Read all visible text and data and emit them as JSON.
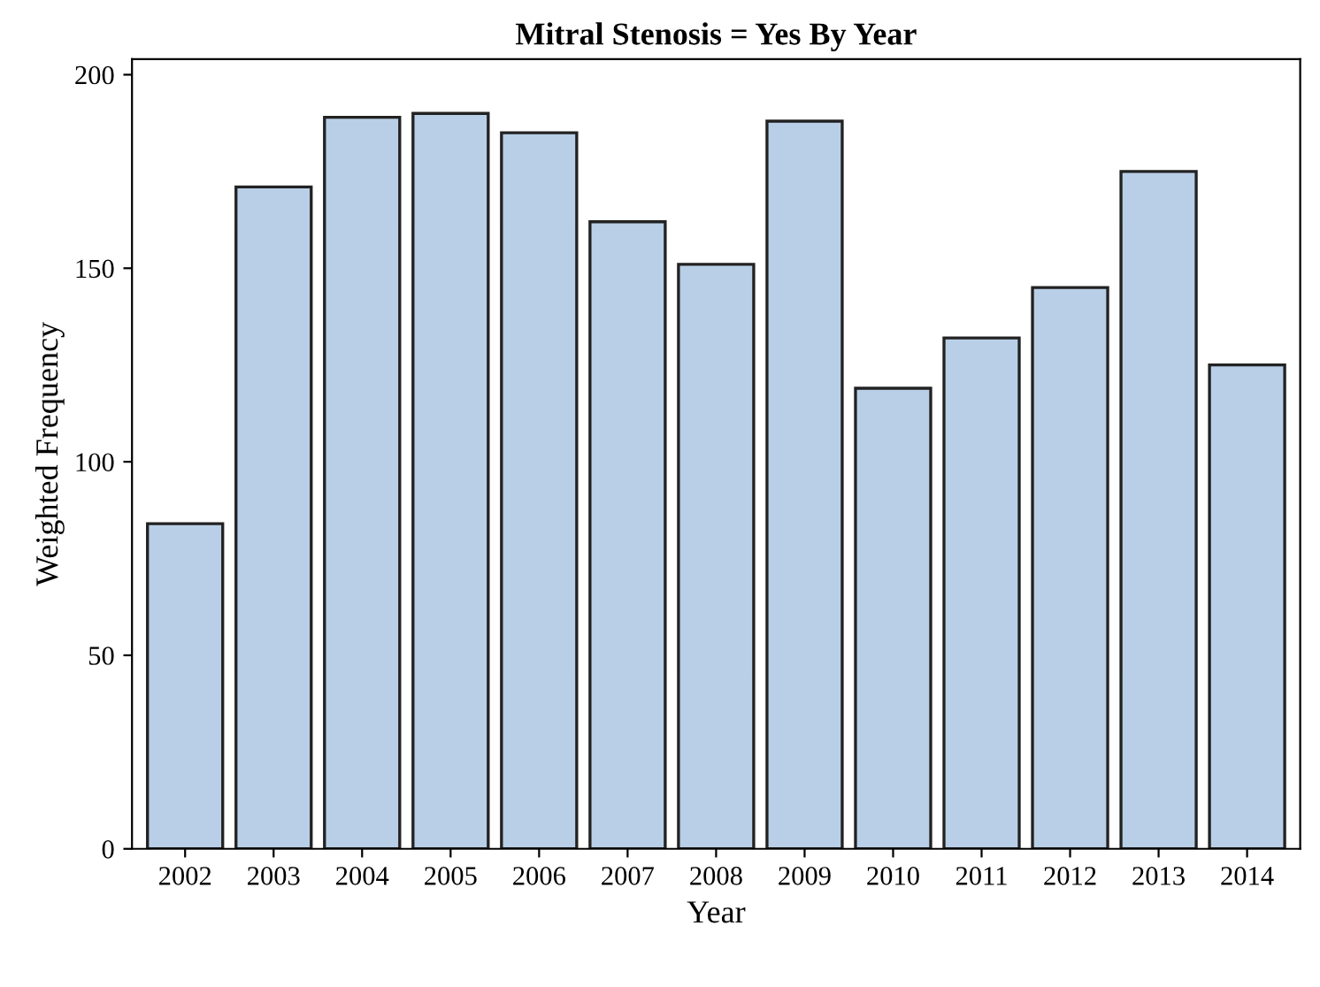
{
  "chart_data": {
    "type": "bar",
    "title": "Mitral Stenosis = Yes By Year",
    "xlabel": "Year",
    "ylabel": "Weighted Frequency",
    "categories": [
      "2002",
      "2003",
      "2004",
      "2005",
      "2006",
      "2007",
      "2008",
      "2009",
      "2010",
      "2011",
      "2012",
      "2013",
      "2014"
    ],
    "values": [
      84,
      171,
      189,
      190,
      185,
      162,
      151,
      188,
      119,
      132,
      145,
      175,
      125
    ],
    "color": "#b9cfe7",
    "ylim": [
      0,
      204
    ],
    "yticks": [
      0,
      50,
      100,
      150,
      200
    ],
    "grid": false,
    "legend": false
  }
}
